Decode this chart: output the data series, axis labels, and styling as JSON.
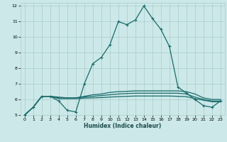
{
  "xlabel": "Humidex (Indice chaleur)",
  "background_color": "#cce8e8",
  "grid_color": "#aacccc",
  "line_color": "#1a6b6b",
  "xlim": [
    -0.5,
    23.5
  ],
  "ylim": [
    5,
    12.2
  ],
  "xticks": [
    0,
    1,
    2,
    3,
    4,
    5,
    6,
    7,
    8,
    9,
    10,
    11,
    12,
    13,
    14,
    15,
    16,
    17,
    18,
    19,
    20,
    21,
    22,
    23
  ],
  "yticks": [
    5,
    6,
    7,
    8,
    9,
    10,
    11,
    12
  ],
  "series": [
    {
      "x": [
        0,
        1,
        2,
        3,
        4,
        5,
        6,
        7,
        8,
        9,
        10,
        11,
        12,
        13,
        14,
        15,
        16,
        17,
        18,
        19,
        20,
        21,
        22,
        23
      ],
      "y": [
        5.0,
        5.5,
        6.2,
        6.2,
        5.9,
        5.3,
        5.2,
        7.0,
        8.3,
        8.7,
        9.5,
        11.0,
        10.8,
        11.1,
        12.0,
        11.2,
        10.5,
        9.4,
        6.8,
        6.4,
        6.0,
        5.6,
        5.5,
        5.9
      ]
    },
    {
      "x": [
        0,
        1,
        2,
        3,
        4,
        5,
        6,
        7,
        8,
        9,
        10,
        11,
        12,
        13,
        14,
        15,
        16,
        17,
        18,
        19,
        20,
        21,
        22,
        23
      ],
      "y": [
        5.0,
        5.5,
        6.2,
        6.2,
        6.15,
        6.1,
        6.1,
        6.2,
        6.3,
        6.35,
        6.45,
        6.5,
        6.52,
        6.55,
        6.55,
        6.55,
        6.55,
        6.55,
        6.55,
        6.5,
        6.35,
        6.1,
        6.0,
        6.0
      ]
    },
    {
      "x": [
        0,
        1,
        2,
        3,
        4,
        5,
        6,
        7,
        8,
        9,
        10,
        11,
        12,
        13,
        14,
        15,
        16,
        17,
        18,
        19,
        20,
        21,
        22,
        23
      ],
      "y": [
        5.0,
        5.5,
        6.2,
        6.2,
        6.1,
        6.1,
        6.1,
        6.15,
        6.2,
        6.25,
        6.3,
        6.35,
        6.38,
        6.4,
        6.4,
        6.4,
        6.4,
        6.4,
        6.4,
        6.35,
        6.15,
        6.0,
        5.9,
        5.9
      ]
    },
    {
      "x": [
        0,
        1,
        2,
        3,
        4,
        5,
        6,
        7,
        8,
        9,
        10,
        11,
        12,
        13,
        14,
        15,
        16,
        17,
        18,
        19,
        20,
        21,
        22,
        23
      ],
      "y": [
        5.0,
        5.5,
        6.2,
        6.2,
        6.05,
        6.05,
        6.05,
        6.08,
        6.1,
        6.12,
        6.15,
        6.18,
        6.2,
        6.22,
        6.22,
        6.22,
        6.22,
        6.22,
        6.2,
        6.18,
        6.05,
        5.95,
        5.85,
        5.85
      ]
    }
  ]
}
